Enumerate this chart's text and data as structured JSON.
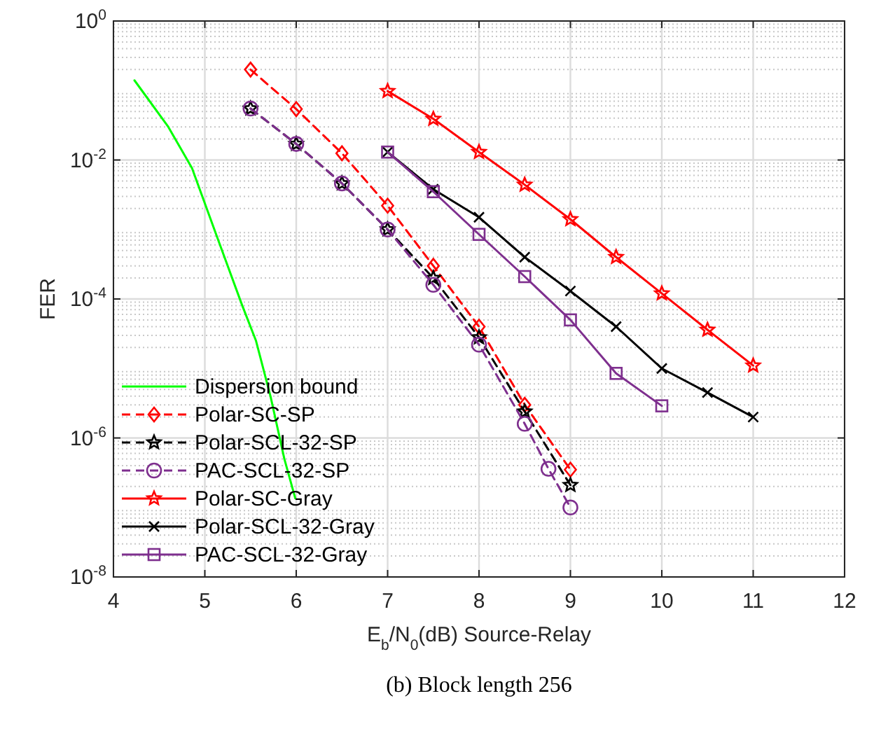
{
  "chart_data": {
    "type": "line",
    "title": "(b) Block length 256",
    "xlabel": "E$_{b}$/N$_{0}$(dB) Source-Relay",
    "ylabel": "FER",
    "log": "y",
    "grid": true,
    "legend": "bottom left",
    "xlim": [
      4,
      12
    ],
    "xticks": [
      4,
      5,
      6,
      7,
      8,
      9,
      10,
      11,
      12
    ],
    "ylim": [
      1e-08,
      1
    ],
    "yticks": [
      {
        "value": 1e-08,
        "label": "10$^{-8}$"
      },
      {
        "value": 1e-06,
        "label": "10$^{-6}$"
      },
      {
        "value": 0.0001,
        "label": "10$^{-4}$"
      },
      {
        "value": 0.01,
        "label": "10$^{-2}$"
      },
      {
        "value": 1,
        "label": "10$^{0}$"
      }
    ],
    "series": [
      {
        "name": "Dispersion bound",
        "color": "#00ff00",
        "marker": "none",
        "line_style": "solid",
        "x": [
          4.23,
          4.6,
          4.86,
          5.16,
          5.41,
          5.56,
          5.72,
          5.87,
          5.99
        ],
        "values": [
          0.14,
          0.03,
          0.0076,
          0.00063,
          8e-05,
          2.5e-05,
          3.9e-06,
          5e-07,
          1.35e-07
        ]
      },
      {
        "name": "Polar-SC-SP",
        "color": "#ff0000",
        "marker": "diamond",
        "line_style": "dashed",
        "x": [
          5.5,
          6,
          6.5,
          7,
          7.5,
          8,
          8.5,
          9
        ],
        "values": [
          0.2,
          0.054,
          0.0125,
          0.0022,
          0.0003,
          4e-05,
          3e-06,
          3.5e-07
        ]
      },
      {
        "name": "Polar-SCL-32-SP",
        "color": "#000000",
        "marker": "star",
        "line_style": "dashed",
        "x": [
          5.5,
          6,
          6.5,
          7,
          7.5,
          8,
          8.5,
          9
        ],
        "values": [
          0.055,
          0.017,
          0.0046,
          0.001,
          0.0002,
          2.8e-05,
          2.4e-06,
          2.1e-07
        ]
      },
      {
        "name": "PAC-SCL-32-SP",
        "color": "#7e2f8e",
        "marker": "circle",
        "line_style": "dashed",
        "x": [
          5.5,
          6,
          6.5,
          7,
          7.5,
          8,
          8.5,
          8.76,
          9
        ],
        "values": [
          0.055,
          0.017,
          0.0046,
          0.001,
          0.00016,
          2.2e-05,
          1.6e-06,
          3.6e-07,
          1e-07
        ]
      },
      {
        "name": "Polar-SC-Gray",
        "color": "#ff0000",
        "marker": "star",
        "line_style": "solid",
        "x": [
          7,
          7.5,
          8,
          8.5,
          9,
          9.5,
          10,
          10.5,
          11
        ],
        "values": [
          0.098,
          0.039,
          0.013,
          0.0044,
          0.0014,
          0.0004,
          0.00012,
          3.6e-05,
          1.1e-05
        ]
      },
      {
        "name": "Polar-SCL-32-Gray",
        "color": "#000000",
        "marker": "cross",
        "line_style": "solid",
        "x": [
          7,
          7.5,
          8,
          8.5,
          9,
          9.5,
          10,
          10.5,
          11
        ],
        "values": [
          0.013,
          0.0038,
          0.0015,
          0.0004,
          0.00013,
          4e-05,
          1e-05,
          4.5e-06,
          2e-06
        ]
      },
      {
        "name": "PAC-SCL-32-Gray",
        "color": "#7e2f8e",
        "marker": "square",
        "line_style": "solid",
        "x": [
          7,
          7.5,
          8,
          8.5,
          9,
          9.5,
          10
        ],
        "values": [
          0.013,
          0.0035,
          0.00085,
          0.00021,
          5e-05,
          8.5e-06,
          2.9e-06
        ]
      }
    ]
  }
}
